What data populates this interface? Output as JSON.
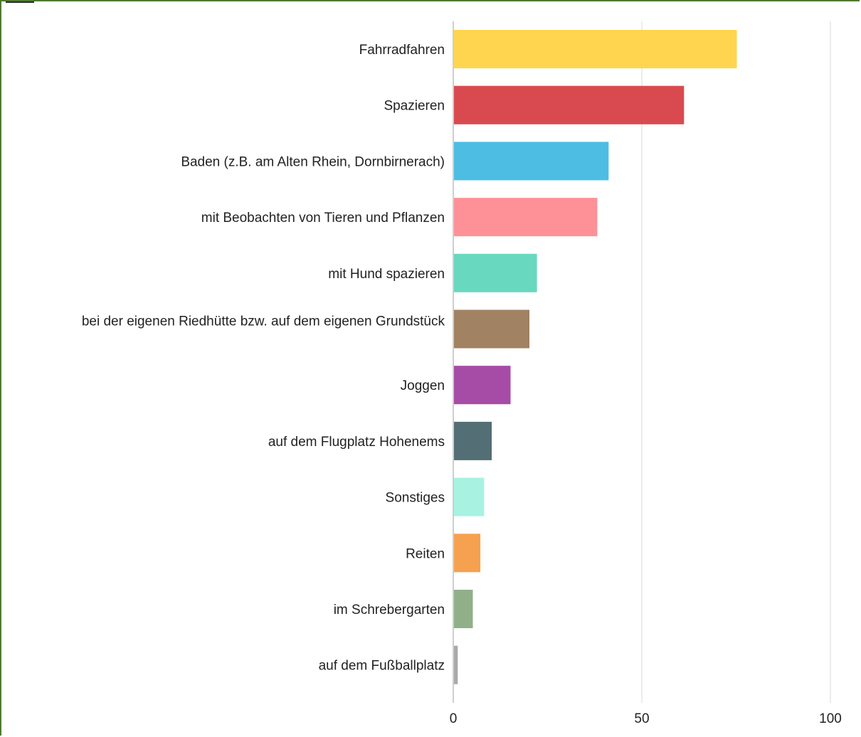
{
  "chart_data": {
    "type": "bar",
    "orientation": "horizontal",
    "categories": [
      "Fahrradfahren",
      "Spazieren",
      "Baden (z.B. am Alten Rhein, Dornbirnerach)",
      "mit Beobachten von Tieren und Pflanzen",
      "mit Hund spazieren",
      "bei der eigenen Riedhütte bzw. auf dem eigenen Grundstück",
      "Joggen",
      "auf dem Flugplatz Hohenems",
      "Sonstiges",
      "Reiten",
      "im Schrebergarten",
      "auf dem Fußballplatz"
    ],
    "values": [
      75,
      61,
      41,
      38,
      22,
      20,
      15,
      10,
      8,
      7,
      5,
      1
    ],
    "colors": [
      "#ffd54f",
      "#d84a4f",
      "#4dbde3",
      "#fe9198",
      "#68d8be",
      "#a18262",
      "#a64ca6",
      "#546e75",
      "#a8f2e1",
      "#f5a150",
      "#90b08a",
      "#a9a9a9"
    ],
    "xlim": [
      0,
      100
    ],
    "x_ticks": [
      0,
      50,
      100
    ],
    "grid": true,
    "title": "",
    "xlabel": "",
    "ylabel": ""
  }
}
